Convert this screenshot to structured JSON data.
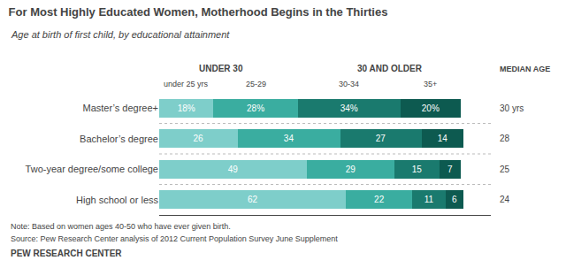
{
  "chart_data": {
    "type": "bar",
    "orientation": "horizontal",
    "stacked": true,
    "title": "For Most Highly Educated Women, Motherhood Begins in the Thirties",
    "subtitle": "Age at birth of first child, by educational attainment",
    "categories": [
      "Master’s degree+",
      "Bachelor’s degree",
      "Two-year degree/some college",
      "High school or less"
    ],
    "series": [
      {
        "name": "under 25 yrs",
        "color": "#7ececa",
        "values": [
          18,
          26,
          49,
          62
        ],
        "value_labels": [
          "18%",
          "26",
          "49",
          "62"
        ]
      },
      {
        "name": "25-29",
        "color": "#3aada0",
        "values": [
          28,
          34,
          29,
          22
        ],
        "value_labels": [
          "28%",
          "34",
          "29",
          "22"
        ]
      },
      {
        "name": "30-34",
        "color": "#1a7a6e",
        "values": [
          34,
          27,
          15,
          11
        ],
        "value_labels": [
          "34%",
          "27",
          "15",
          "11"
        ]
      },
      {
        "name": "35+",
        "color": "#0d5a50",
        "values": [
          20,
          14,
          7,
          6
        ],
        "value_labels": [
          "20%",
          "14",
          "7",
          "6"
        ]
      }
    ],
    "data_labels": true,
    "xlim": [
      0,
      110
    ],
    "grid": false,
    "tick_labels": "y",
    "group_labels": [
      "UNDER 30",
      "30 AND OLDER"
    ],
    "median_label": "MEDIAN AGE",
    "median_ages": [
      "30 yrs",
      "28",
      "25",
      "24"
    ],
    "notes": [
      "Note: Based on women ages 40-50 who have ever given birth.",
      "Source: Pew Research Center analysis of 2012 Current Population Survey June Supplement"
    ],
    "footer": "PEW RESEARCH CENTER"
  }
}
